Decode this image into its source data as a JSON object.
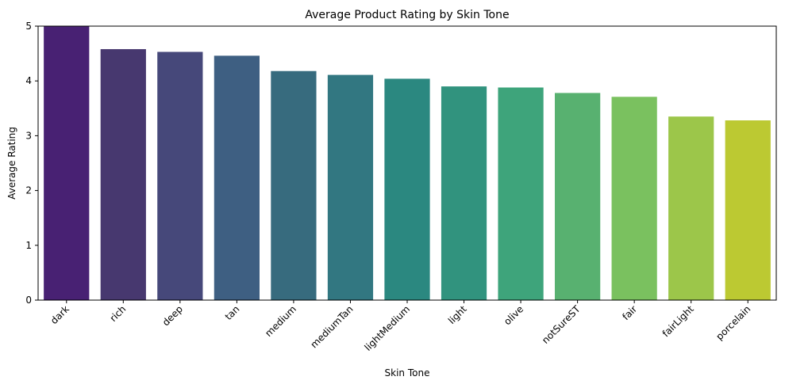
{
  "chart_data": {
    "type": "bar",
    "title": "Average Product Rating by Skin Tone",
    "xlabel": "Skin Tone",
    "ylabel": "Average Rating",
    "ylim": [
      0,
      5
    ],
    "yticks": [
      "0",
      "1",
      "2",
      "3",
      "4",
      "5"
    ],
    "grid": false,
    "categories": [
      "dark",
      "rich",
      "deep",
      "tan",
      "medium",
      "mediumTan",
      "lightMedium",
      "light",
      "olive",
      "notSureST",
      "fair",
      "fairLight",
      "porcelain"
    ],
    "values": [
      5.0,
      4.58,
      4.53,
      4.46,
      4.18,
      4.11,
      4.04,
      3.9,
      3.88,
      3.78,
      3.71,
      3.35,
      3.28
    ],
    "colors": [
      "#482173",
      "#47386f",
      "#46487a",
      "#3e5f82",
      "#376b7e",
      "#327781",
      "#2b8880",
      "#31937e",
      "#3ea47b",
      "#58b170",
      "#7ac15f",
      "#9cc64a",
      "#bcc932"
    ]
  }
}
